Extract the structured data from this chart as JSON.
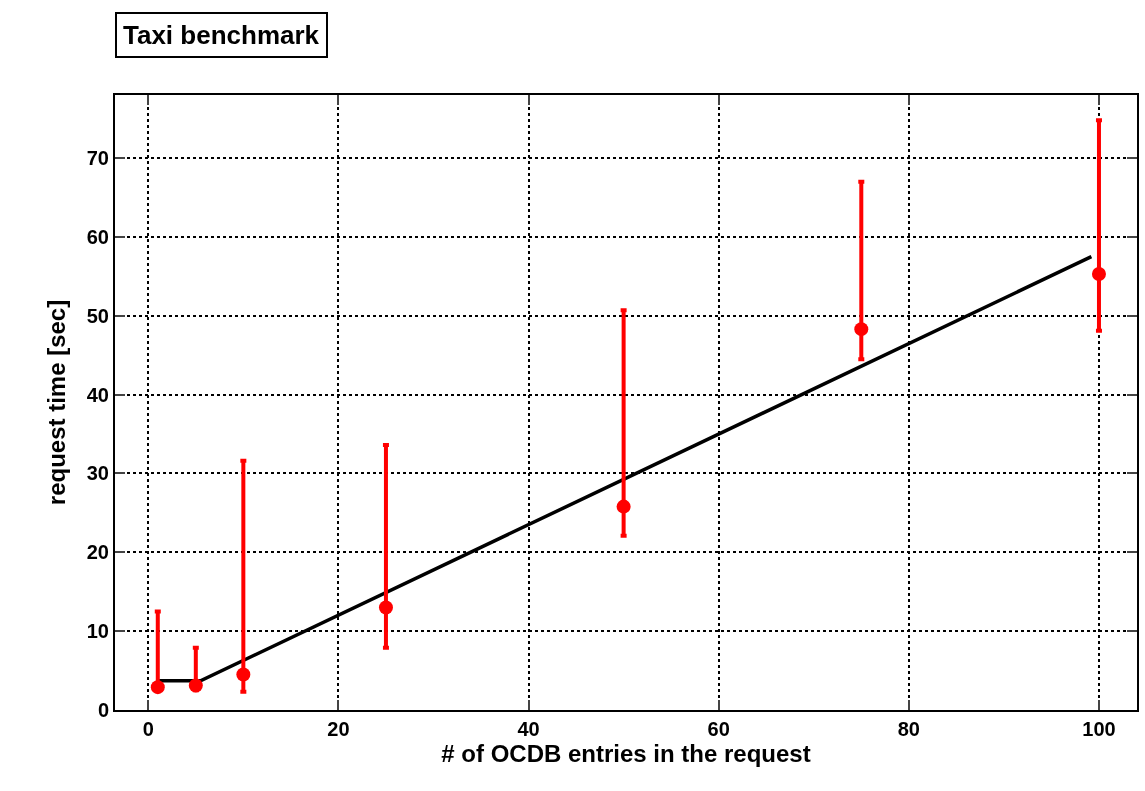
{
  "chart_data": {
    "type": "scatter",
    "title": "Taxi benchmark",
    "xlabel": "# of OCDB entries in the request",
    "ylabel": "request time [sec]",
    "xlim": [
      -3.5,
      104
    ],
    "xticks": [
      0,
      20,
      40,
      60,
      80,
      100
    ],
    "ylim": [
      0,
      78
    ],
    "yticks": [
      0,
      10,
      20,
      30,
      40,
      50,
      60,
      70
    ],
    "grid": true,
    "series": [
      {
        "marker": "circle",
        "color": "#ff0000",
        "x": [
          1,
          5,
          10,
          25,
          50,
          75,
          100
        ],
        "values": [
          2.9,
          3.1,
          4.5,
          13.0,
          25.8,
          48.3,
          55.3
        ],
        "errors": [
          [
            2.5,
            12.5
          ],
          [
            2.5,
            7.9
          ],
          [
            2.3,
            31.6
          ],
          [
            7.9,
            33.6
          ],
          [
            22.1,
            50.7
          ],
          [
            44.5,
            67.0
          ],
          [
            48.1,
            74.8
          ]
        ]
      },
      {
        "type": "line",
        "color": "#000000",
        "line_style": "solid",
        "x": [
          1,
          5.5,
          99.2
        ],
        "values": [
          3.7,
          3.7,
          57.5
        ]
      }
    ]
  }
}
